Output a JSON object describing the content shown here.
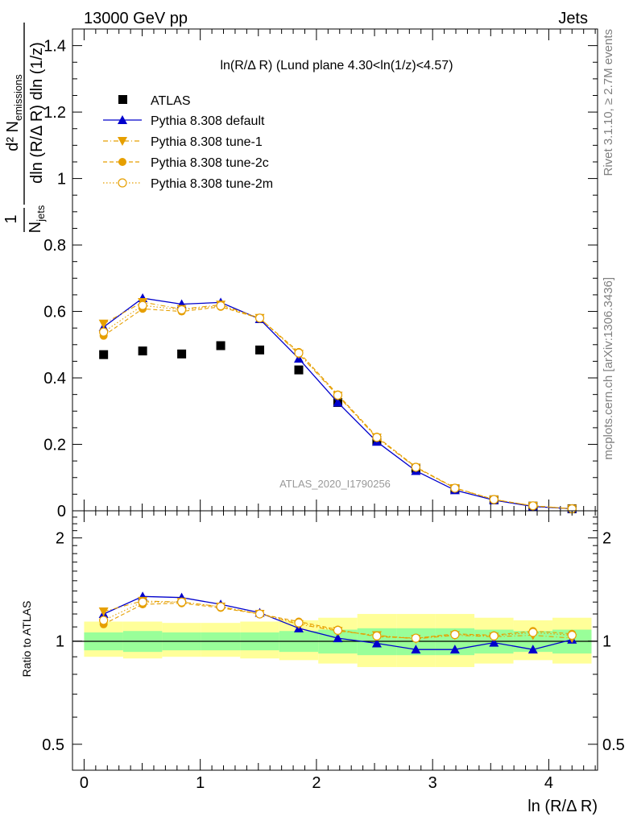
{
  "header": {
    "left": "13000 GeV pp",
    "right": "Jets"
  },
  "side": {
    "rivet": "Rivet 3.1.10, ≥ 2.7M events",
    "mcplots": "mcplots.cern.ch [arXiv:1306.3436]"
  },
  "colors": {
    "atlas": "#000000",
    "default": "#0000cc",
    "tunes": "#e69f00",
    "band_inner": "#99ff99",
    "band_outer": "#ffff99",
    "axis": "#000000",
    "watermark": "#999999",
    "sidetext": "#808080"
  },
  "chart_data": [
    {
      "type": "scatter",
      "title": "ln(R/Δ R) (Lund plane 4.30<ln(1/z)<4.57)",
      "xlabel": "ln (R/Δ R)",
      "ylabel_main": "d² N",
      "ylabel_sub": "emissions",
      "ylabel_den": "dln (R/Δ R) dln (1/z)",
      "ylabel_den_sub": "jets",
      "ylabel_num": "1",
      "ylabel_nden": "N",
      "watermark": "ATLAS_2020_I1790256",
      "xlim": [
        -0.1,
        4.42
      ],
      "ylim": [
        0,
        1.45
      ],
      "xticks": [
        0,
        1,
        2,
        3,
        4
      ],
      "xticklabels": [
        "0",
        "1",
        "2",
        "3",
        "4"
      ],
      "yticks": [
        0,
        0.2,
        0.4,
        0.6,
        0.8,
        1,
        1.2,
        1.4
      ],
      "yticklabels": [
        "0",
        "0.2",
        "0.4",
        "0.6",
        "0.8",
        "1",
        "1.2",
        "1.4"
      ],
      "x": [
        0.168,
        0.504,
        0.84,
        1.176,
        1.512,
        1.848,
        2.184,
        2.52,
        2.856,
        3.192,
        3.528,
        3.864,
        4.2
      ],
      "legend": {
        "position": "top-left",
        "entries": [
          "ATLAS",
          "Pythia 8.308 default",
          "Pythia 8.308 tune-1",
          "Pythia 8.308 tune-2c",
          "Pythia 8.308 tune-2m"
        ]
      },
      "series": [
        {
          "name": "ATLAS",
          "marker": "square",
          "values": [
            0.47,
            0.481,
            0.472,
            0.497,
            0.484,
            0.424,
            0.326,
            0.212,
            0.128,
            0.066,
            0.033,
            0.014,
            0.006
          ]
        },
        {
          "name": "Pythia 8.308 default",
          "marker": "triangle-up",
          "line": "solid",
          "values": [
            0.553,
            0.64,
            0.622,
            0.627,
            0.577,
            0.458,
            0.326,
            0.208,
            0.12,
            0.062,
            0.032,
            0.013,
            0.006
          ]
        },
        {
          "name": "Pythia 8.308 tune-1",
          "marker": "triangle-down",
          "line": "dashdot",
          "values": [
            0.563,
            0.628,
            0.607,
            0.62,
            0.58,
            0.472,
            0.346,
            0.22,
            0.13,
            0.068,
            0.034,
            0.015,
            0.006
          ]
        },
        {
          "name": "Pythia 8.308 tune-2c",
          "marker": "circle",
          "line": "dashed",
          "values": [
            0.527,
            0.608,
            0.6,
            0.614,
            0.579,
            0.478,
            0.35,
            0.223,
            0.132,
            0.069,
            0.034,
            0.015,
            0.006
          ]
        },
        {
          "name": "Pythia 8.308 tune-2m",
          "marker": "circle-open",
          "line": "dotted",
          "values": [
            0.538,
            0.618,
            0.605,
            0.617,
            0.58,
            0.475,
            0.348,
            0.221,
            0.131,
            0.068,
            0.034,
            0.015,
            0.006
          ]
        }
      ]
    },
    {
      "type": "scatter",
      "ylabel": "Ratio to ATLAS",
      "xlim": [
        -0.1,
        4.42
      ],
      "ylim": [
        0.42,
        2.4
      ],
      "log_y": true,
      "yticks": [
        0.5,
        1,
        2
      ],
      "yticklabels": [
        "0.5",
        "1",
        "2"
      ],
      "x": [
        0.168,
        0.504,
        0.84,
        1.176,
        1.512,
        1.848,
        2.184,
        2.52,
        2.856,
        3.192,
        3.528,
        3.864,
        4.2
      ],
      "bands": {
        "edges": [
          0.0,
          0.336,
          0.672,
          1.008,
          1.344,
          1.68,
          2.016,
          2.352,
          2.688,
          3.024,
          3.36,
          3.696,
          4.032,
          4.368
        ],
        "inner_lo": [
          0.94,
          0.93,
          0.94,
          0.94,
          0.94,
          0.93,
          0.92,
          0.91,
          0.91,
          0.91,
          0.92,
          0.93,
          0.92
        ],
        "inner_hi": [
          1.06,
          1.07,
          1.06,
          1.06,
          1.06,
          1.07,
          1.08,
          1.09,
          1.09,
          1.09,
          1.08,
          1.07,
          1.08
        ],
        "outer_lo": [
          0.9,
          0.89,
          0.9,
          0.9,
          0.89,
          0.88,
          0.86,
          0.84,
          0.84,
          0.84,
          0.86,
          0.88,
          0.86
        ],
        "outer_hi": [
          1.14,
          1.14,
          1.13,
          1.13,
          1.14,
          1.15,
          1.17,
          1.2,
          1.2,
          1.2,
          1.17,
          1.15,
          1.17
        ]
      },
      "series": [
        {
          "name": "Pythia 8.308 default",
          "marker": "triangle-up",
          "line": "solid",
          "values": [
            1.2,
            1.35,
            1.34,
            1.28,
            1.21,
            1.09,
            1.02,
            0.985,
            0.945,
            0.945,
            0.99,
            0.945,
            1.01
          ]
        },
        {
          "name": "Pythia 8.308 tune-1",
          "marker": "triangle-down",
          "line": "dashdot",
          "values": [
            1.22,
            1.31,
            1.3,
            1.26,
            1.2,
            1.12,
            1.07,
            1.04,
            1.015,
            1.04,
            1.03,
            1.04,
            1.02
          ]
        },
        {
          "name": "Pythia 8.308 tune-2c",
          "marker": "circle",
          "line": "dashed",
          "values": [
            1.12,
            1.28,
            1.29,
            1.25,
            1.2,
            1.14,
            1.08,
            1.03,
            1.02,
            1.05,
            1.04,
            1.07,
            1.05
          ]
        },
        {
          "name": "Pythia 8.308 tune-2m",
          "marker": "circle-open",
          "line": "dotted",
          "values": [
            1.15,
            1.3,
            1.3,
            1.26,
            1.2,
            1.13,
            1.075,
            1.035,
            1.02,
            1.045,
            1.035,
            1.06,
            1.04
          ]
        }
      ]
    }
  ]
}
